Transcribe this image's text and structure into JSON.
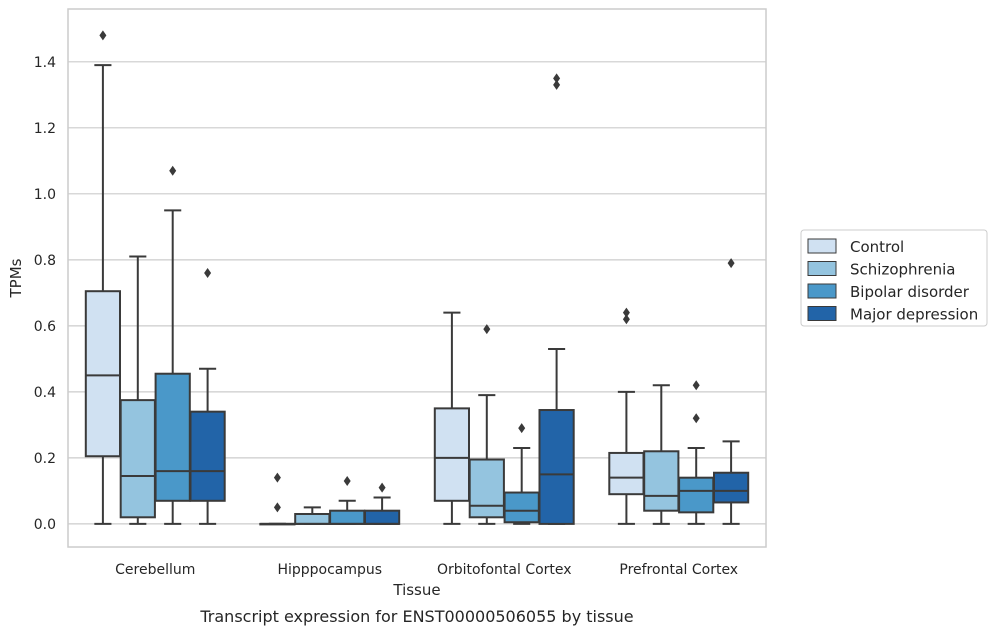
{
  "caption": "Transcript expression for ENST00000506055 by tissue",
  "chart_data": {
    "type": "box",
    "title": "",
    "xlabel": "Tissue",
    "ylabel": "TPMs",
    "ylim": [
      -0.07,
      1.56
    ],
    "yticks": [
      "0.0",
      "0.2",
      "0.4",
      "0.6",
      "0.8",
      "1.0",
      "1.2",
      "1.4"
    ],
    "ytick_values": [
      0.0,
      0.2,
      0.4,
      0.6,
      0.8,
      1.0,
      1.2,
      1.4
    ],
    "grid": "horizontal",
    "legend_position": "right",
    "categories": [
      "Cerebellum",
      "Hipppocampus",
      "Orbitofontal Cortex",
      "Prefrontal Cortex"
    ],
    "series": [
      {
        "name": "Control",
        "color": "#d0e1f2",
        "boxes": [
          {
            "whislo": 0.0,
            "q1": 0.205,
            "med": 0.45,
            "q3": 0.705,
            "whishi": 1.39,
            "fliers": [
              1.48
            ]
          },
          {
            "whislo": 0.0,
            "q1": 0.0,
            "med": 0.0,
            "q3": 0.0,
            "whishi": 0.0,
            "fliers": [
              0.14,
              0.05
            ]
          },
          {
            "whislo": 0.0,
            "q1": 0.07,
            "med": 0.2,
            "q3": 0.35,
            "whishi": 0.64,
            "fliers": []
          },
          {
            "whislo": 0.0,
            "q1": 0.09,
            "med": 0.14,
            "q3": 0.215,
            "whishi": 0.4,
            "fliers": [
              0.64,
              0.62
            ]
          }
        ]
      },
      {
        "name": "Schizophrenia",
        "color": "#94c4df",
        "boxes": [
          {
            "whislo": 0.0,
            "q1": 0.02,
            "med": 0.145,
            "q3": 0.375,
            "whishi": 0.81,
            "fliers": []
          },
          {
            "whislo": 0.0,
            "q1": 0.0,
            "med": 0.0,
            "q3": 0.03,
            "whishi": 0.05,
            "fliers": []
          },
          {
            "whislo": 0.0,
            "q1": 0.02,
            "med": 0.055,
            "q3": 0.195,
            "whishi": 0.39,
            "fliers": [
              0.59
            ]
          },
          {
            "whislo": 0.0,
            "q1": 0.04,
            "med": 0.085,
            "q3": 0.22,
            "whishi": 0.42,
            "fliers": []
          }
        ]
      },
      {
        "name": "Bipolar disorder",
        "color": "#4a98c9",
        "boxes": [
          {
            "whislo": 0.0,
            "q1": 0.07,
            "med": 0.16,
            "q3": 0.455,
            "whishi": 0.95,
            "fliers": [
              1.07
            ]
          },
          {
            "whislo": 0.0,
            "q1": 0.0,
            "med": 0.0,
            "q3": 0.04,
            "whishi": 0.07,
            "fliers": [
              0.13
            ]
          },
          {
            "whislo": 0.0,
            "q1": 0.005,
            "med": 0.04,
            "q3": 0.095,
            "whishi": 0.23,
            "fliers": [
              0.29
            ]
          },
          {
            "whislo": 0.0,
            "q1": 0.035,
            "med": 0.1,
            "q3": 0.14,
            "whishi": 0.23,
            "fliers": [
              0.42,
              0.32
            ]
          }
        ]
      },
      {
        "name": "Major depression",
        "color": "#2264a8",
        "boxes": [
          {
            "whislo": 0.0,
            "q1": 0.07,
            "med": 0.16,
            "q3": 0.34,
            "whishi": 0.47,
            "fliers": [
              0.76
            ]
          },
          {
            "whislo": 0.0,
            "q1": 0.0,
            "med": 0.0,
            "q3": 0.04,
            "whishi": 0.08,
            "fliers": [
              0.11
            ]
          },
          {
            "whislo": 0.0,
            "q1": 0.0,
            "med": 0.15,
            "q3": 0.345,
            "whishi": 0.53,
            "fliers": [
              1.35,
              1.33
            ]
          },
          {
            "whislo": 0.0,
            "q1": 0.065,
            "med": 0.1,
            "q3": 0.155,
            "whishi": 0.25,
            "fliers": [
              0.79
            ]
          }
        ]
      }
    ]
  }
}
